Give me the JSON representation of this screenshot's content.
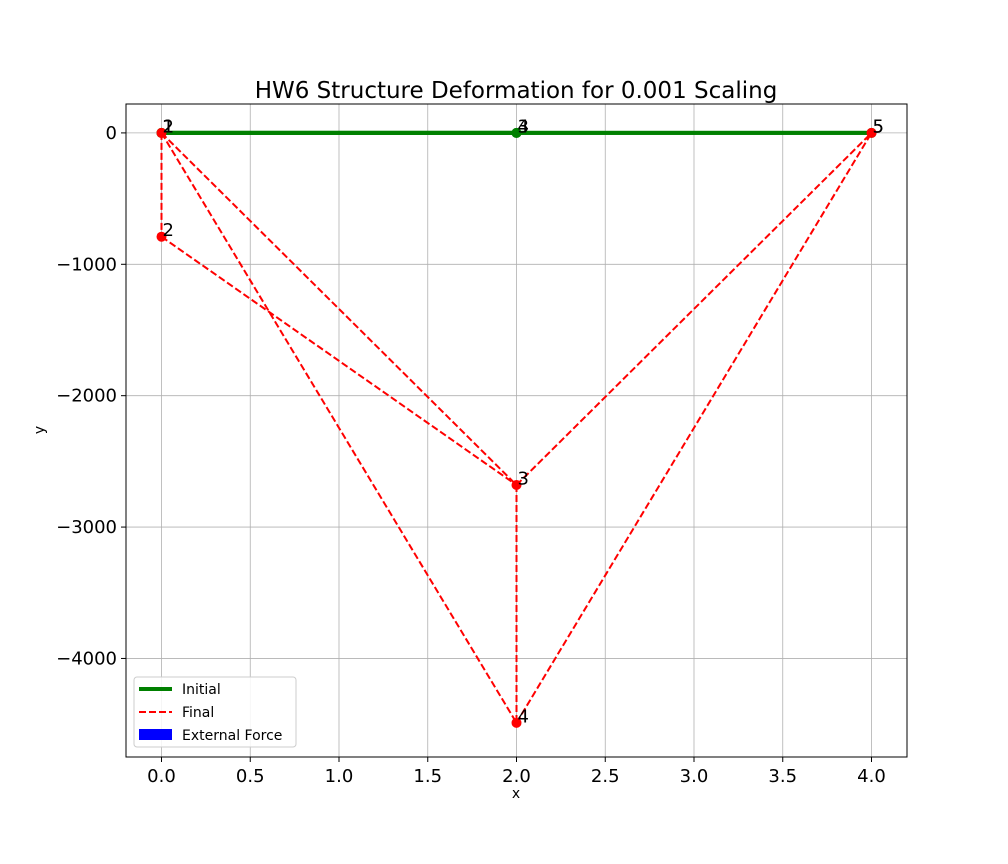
{
  "chart_data": {
    "type": "line",
    "title": "HW6 Structure Deformation for 0.001 Scaling",
    "xlabel": "x",
    "ylabel": "y",
    "xlim": [
      -0.2,
      4.2
    ],
    "ylim": [
      -4750,
      220
    ],
    "xticks": [
      0.0,
      0.5,
      1.0,
      1.5,
      2.0,
      2.5,
      3.0,
      3.5,
      4.0
    ],
    "xtick_labels": [
      "0.0",
      "0.5",
      "1.0",
      "1.5",
      "2.0",
      "2.5",
      "3.0",
      "3.5",
      "4.0"
    ],
    "yticks": [
      0,
      -1000,
      -2000,
      -3000,
      -4000
    ],
    "ytick_labels": [
      "0",
      "−1000",
      "−2000",
      "−3000",
      "−4000"
    ],
    "grid": true,
    "legend_position": "lower-left",
    "legend": [
      "Initial",
      "Final",
      "External Force"
    ],
    "colors": {
      "initial": "#008000",
      "final": "#ff0000",
      "force": "#0000ff"
    },
    "initial_nodes": [
      {
        "id": "1",
        "x": 0.0,
        "y": 0
      },
      {
        "id": "2",
        "x": 0.0,
        "y": 0
      },
      {
        "id": "3",
        "x": 2.0,
        "y": 0
      },
      {
        "id": "4",
        "x": 2.0,
        "y": 0
      },
      {
        "id": "5",
        "x": 4.0,
        "y": 0
      }
    ],
    "final_nodes": [
      {
        "id": "1",
        "x": 0.0,
        "y": 0
      },
      {
        "id": "2",
        "x": 0.0,
        "y": -790
      },
      {
        "id": "3",
        "x": 2.0,
        "y": -2680
      },
      {
        "id": "4",
        "x": 2.0,
        "y": -4490
      },
      {
        "id": "5",
        "x": 4.0,
        "y": 0
      }
    ],
    "elements": [
      [
        "1",
        "2"
      ],
      [
        "1",
        "3"
      ],
      [
        "1",
        "4"
      ],
      [
        "2",
        "3"
      ],
      [
        "3",
        "4"
      ],
      [
        "3",
        "5"
      ],
      [
        "4",
        "5"
      ]
    ]
  }
}
